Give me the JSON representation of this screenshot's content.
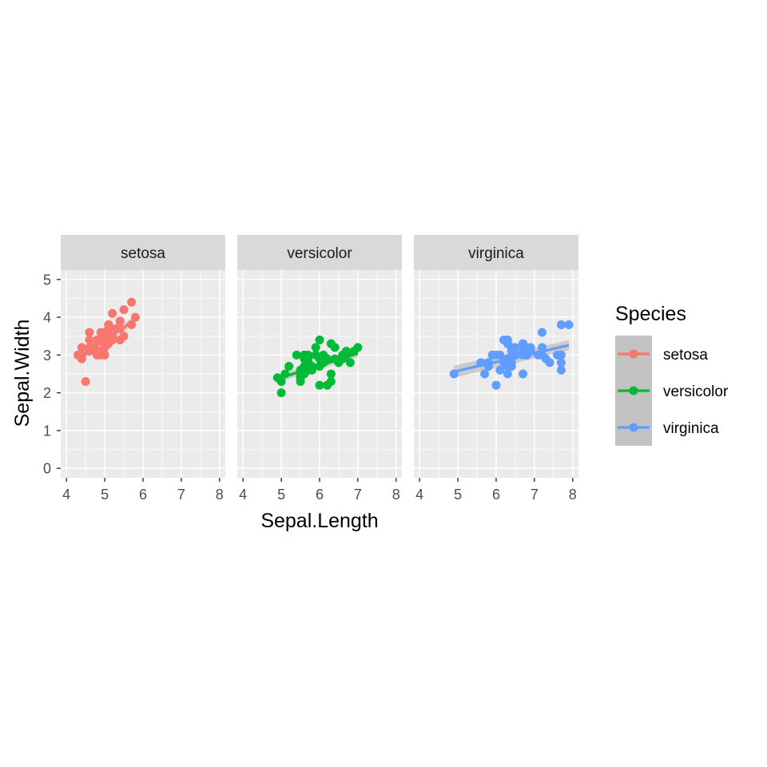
{
  "chart_data": {
    "type": "scatter",
    "facet_by": "Species",
    "xlabel": "Sepal.Length",
    "ylabel": "Sepal.Width",
    "xlim": [
      3.85,
      8.15
    ],
    "ylim": [
      -0.25,
      5.25
    ],
    "x_ticks": [
      4,
      5,
      6,
      7,
      8
    ],
    "y_ticks": [
      0,
      1,
      2,
      3,
      4,
      5
    ],
    "grid": true,
    "smooth": "lm with confidence band",
    "legend": {
      "title": "Species",
      "position": "right",
      "entries": [
        "setosa",
        "versicolor",
        "virginica"
      ]
    },
    "series": [
      {
        "name": "setosa",
        "color": "#F8766D",
        "points": [
          [
            5.1,
            3.5
          ],
          [
            4.9,
            3.0
          ],
          [
            4.7,
            3.2
          ],
          [
            4.6,
            3.1
          ],
          [
            5.0,
            3.6
          ],
          [
            5.4,
            3.9
          ],
          [
            4.6,
            3.4
          ],
          [
            5.0,
            3.4
          ],
          [
            4.4,
            2.9
          ],
          [
            4.9,
            3.1
          ],
          [
            5.4,
            3.7
          ],
          [
            4.8,
            3.4
          ],
          [
            4.8,
            3.0
          ],
          [
            4.3,
            3.0
          ],
          [
            5.8,
            4.0
          ],
          [
            5.7,
            4.4
          ],
          [
            5.4,
            3.9
          ],
          [
            5.1,
            3.5
          ],
          [
            5.7,
            3.8
          ],
          [
            5.1,
            3.8
          ],
          [
            5.4,
            3.4
          ],
          [
            5.1,
            3.7
          ],
          [
            4.6,
            3.6
          ],
          [
            5.1,
            3.3
          ],
          [
            4.8,
            3.4
          ],
          [
            5.0,
            3.0
          ],
          [
            5.0,
            3.4
          ],
          [
            5.2,
            3.5
          ],
          [
            5.2,
            3.4
          ],
          [
            4.7,
            3.2
          ],
          [
            4.8,
            3.1
          ],
          [
            5.4,
            3.4
          ],
          [
            5.2,
            4.1
          ],
          [
            5.5,
            4.2
          ],
          [
            4.9,
            3.1
          ],
          [
            5.0,
            3.2
          ],
          [
            5.5,
            3.5
          ],
          [
            4.9,
            3.6
          ],
          [
            4.4,
            3.0
          ],
          [
            5.1,
            3.4
          ],
          [
            5.0,
            3.5
          ],
          [
            4.5,
            2.3
          ],
          [
            4.4,
            3.2
          ],
          [
            5.0,
            3.5
          ],
          [
            5.1,
            3.8
          ],
          [
            4.8,
            3.0
          ],
          [
            5.1,
            3.8
          ],
          [
            4.6,
            3.2
          ],
          [
            5.3,
            3.7
          ],
          [
            5.0,
            3.3
          ]
        ],
        "fit": {
          "x": [
            4.3,
            5.8
          ],
          "y": [
            2.9,
            3.94
          ],
          "se": [
            0.08,
            0.1
          ]
        }
      },
      {
        "name": "versicolor",
        "color": "#00BA38",
        "points": [
          [
            7.0,
            3.2
          ],
          [
            6.4,
            3.2
          ],
          [
            6.9,
            3.1
          ],
          [
            5.5,
            2.3
          ],
          [
            6.5,
            2.8
          ],
          [
            5.7,
            2.8
          ],
          [
            6.3,
            3.3
          ],
          [
            4.9,
            2.4
          ],
          [
            6.6,
            2.9
          ],
          [
            5.2,
            2.7
          ],
          [
            5.0,
            2.0
          ],
          [
            5.9,
            3.0
          ],
          [
            6.0,
            2.2
          ],
          [
            6.1,
            2.9
          ],
          [
            5.6,
            2.9
          ],
          [
            6.7,
            3.1
          ],
          [
            5.6,
            3.0
          ],
          [
            5.8,
            2.7
          ],
          [
            6.2,
            2.2
          ],
          [
            5.6,
            2.5
          ],
          [
            5.9,
            3.2
          ],
          [
            6.1,
            2.8
          ],
          [
            6.3,
            2.5
          ],
          [
            6.1,
            2.8
          ],
          [
            6.4,
            2.9
          ],
          [
            6.6,
            3.0
          ],
          [
            6.8,
            2.8
          ],
          [
            6.7,
            3.0
          ],
          [
            6.0,
            2.9
          ],
          [
            5.7,
            2.6
          ],
          [
            5.5,
            2.4
          ],
          [
            5.5,
            2.4
          ],
          [
            5.8,
            2.7
          ],
          [
            6.0,
            2.7
          ],
          [
            5.4,
            3.0
          ],
          [
            6.0,
            3.4
          ],
          [
            6.7,
            3.1
          ],
          [
            6.3,
            2.3
          ],
          [
            5.6,
            3.0
          ],
          [
            5.5,
            2.5
          ],
          [
            5.5,
            2.6
          ],
          [
            6.1,
            3.0
          ],
          [
            5.8,
            2.6
          ],
          [
            5.0,
            2.3
          ],
          [
            5.6,
            2.7
          ],
          [
            5.7,
            3.0
          ],
          [
            5.7,
            2.9
          ],
          [
            6.2,
            2.9
          ],
          [
            5.1,
            2.5
          ],
          [
            5.7,
            2.8
          ]
        ],
        "fit": {
          "x": [
            4.9,
            7.0
          ],
          "y": [
            2.37,
            3.04
          ],
          "se": [
            0.09,
            0.09
          ]
        }
      },
      {
        "name": "virginica",
        "color": "#619CFF",
        "points": [
          [
            6.3,
            3.3
          ],
          [
            5.8,
            2.7
          ],
          [
            7.1,
            3.0
          ],
          [
            6.3,
            2.9
          ],
          [
            6.5,
            3.0
          ],
          [
            7.6,
            3.0
          ],
          [
            4.9,
            2.5
          ],
          [
            7.3,
            2.9
          ],
          [
            6.7,
            2.5
          ],
          [
            7.2,
            3.6
          ],
          [
            6.5,
            3.2
          ],
          [
            6.4,
            2.7
          ],
          [
            6.8,
            3.0
          ],
          [
            5.7,
            2.5
          ],
          [
            5.8,
            2.8
          ],
          [
            6.4,
            3.2
          ],
          [
            6.5,
            3.0
          ],
          [
            7.7,
            3.8
          ],
          [
            7.7,
            2.6
          ],
          [
            6.0,
            2.2
          ],
          [
            6.9,
            3.2
          ],
          [
            5.6,
            2.8
          ],
          [
            7.7,
            2.8
          ],
          [
            6.3,
            2.7
          ],
          [
            6.7,
            3.3
          ],
          [
            7.2,
            3.2
          ],
          [
            6.2,
            2.8
          ],
          [
            6.1,
            3.0
          ],
          [
            6.4,
            2.8
          ],
          [
            7.2,
            3.0
          ],
          [
            7.4,
            2.8
          ],
          [
            7.9,
            3.8
          ],
          [
            6.4,
            2.8
          ],
          [
            6.3,
            2.8
          ],
          [
            6.1,
            2.6
          ],
          [
            7.7,
            3.0
          ],
          [
            6.3,
            3.4
          ],
          [
            6.4,
            3.1
          ],
          [
            6.0,
            3.0
          ],
          [
            6.9,
            3.1
          ],
          [
            6.7,
            3.1
          ],
          [
            6.9,
            3.1
          ],
          [
            5.8,
            2.7
          ],
          [
            6.8,
            3.2
          ],
          [
            6.7,
            3.3
          ],
          [
            6.7,
            3.0
          ],
          [
            6.3,
            2.5
          ],
          [
            6.5,
            3.0
          ],
          [
            6.2,
            3.4
          ],
          [
            5.9,
            3.0
          ]
        ],
        "fit": {
          "x": [
            4.9,
            7.9
          ],
          "y": [
            2.56,
            3.26
          ],
          "se": [
            0.16,
            0.13
          ]
        }
      }
    ]
  }
}
